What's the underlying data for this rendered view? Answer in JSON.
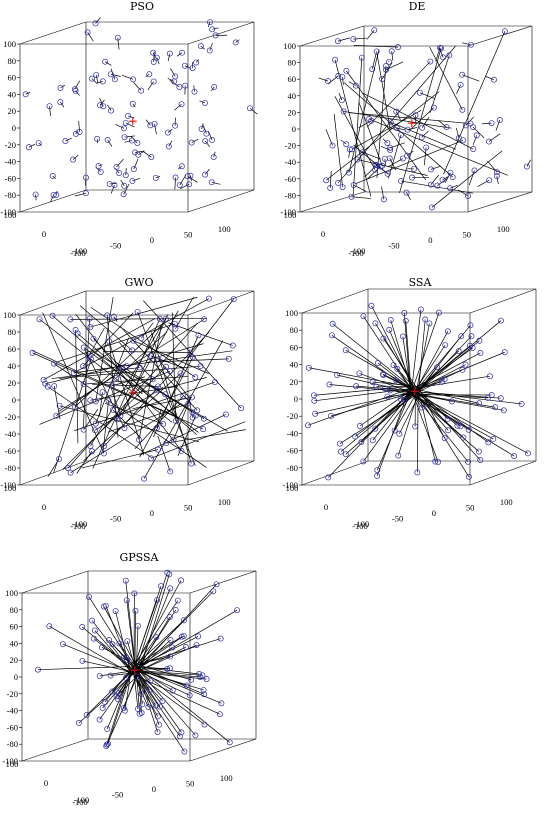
{
  "chart_data": [
    {
      "type": "scatter",
      "title": "PSO",
      "zlim": [
        -100,
        100
      ],
      "xlim": [
        -100,
        100
      ],
      "ylim": [
        -100,
        100
      ],
      "z_ticks": [
        "100",
        "80",
        "60",
        "40",
        "20",
        "0",
        "-20",
        "-40",
        "-60",
        "-80",
        "-100"
      ],
      "x_ticks": [
        "-100",
        "-50",
        "0",
        "50",
        "100"
      ],
      "y_ticks": [
        "100",
        "0",
        "-100"
      ],
      "best_marker": "+",
      "trajectory_pattern": "short-random",
      "particle_count": 100,
      "colors": {
        "particle": "#2a2aa8",
        "trajectory": "#000000",
        "best": "#e01010"
      }
    },
    {
      "type": "scatter",
      "title": "DE",
      "zlim": [
        -100,
        100
      ],
      "xlim": [
        -100,
        100
      ],
      "ylim": [
        -100,
        100
      ],
      "z_ticks": [
        "100",
        "80",
        "60",
        "40",
        "20",
        "0",
        "-20",
        "-40",
        "-60",
        "-80",
        "-100"
      ],
      "x_ticks": [
        "-100",
        "-50",
        "0",
        "50",
        "100"
      ],
      "y_ticks": [
        "100",
        "0",
        "-100"
      ],
      "best_marker": "+",
      "trajectory_pattern": "mixed-long",
      "particle_count": 100,
      "colors": {
        "particle": "#2a2aa8",
        "trajectory": "#000000",
        "best": "#e01010"
      }
    },
    {
      "type": "scatter",
      "title": "GWO",
      "zlim": [
        -100,
        100
      ],
      "xlim": [
        -100,
        100
      ],
      "ylim": [
        -100,
        100
      ],
      "z_ticks": [
        "100",
        "80",
        "60",
        "40",
        "20",
        "0",
        "-20",
        "-40",
        "-60",
        "-80",
        "-100"
      ],
      "x_ticks": [
        "-100",
        "-50",
        "0",
        "50",
        "100"
      ],
      "y_ticks": [
        "100",
        "0",
        "-100"
      ],
      "best_marker": "+",
      "trajectory_pattern": "long-random",
      "particle_count": 100,
      "colors": {
        "particle": "#2a2aa8",
        "trajectory": "#000000",
        "best": "#e01010"
      }
    },
    {
      "type": "scatter",
      "title": "SSA",
      "zlim": [
        -100,
        100
      ],
      "xlim": [
        -100,
        100
      ],
      "ylim": [
        -100,
        100
      ],
      "z_ticks": [
        "100",
        "80",
        "60",
        "40",
        "20",
        "0",
        "-20",
        "-40",
        "-60",
        "-80",
        "-100"
      ],
      "x_ticks": [
        "-100",
        "-50",
        "0",
        "50",
        "100"
      ],
      "y_ticks": [
        "100",
        "0",
        "-100"
      ],
      "best_marker": "+",
      "trajectory_pattern": "converge-to-center",
      "particle_count": 100,
      "colors": {
        "particle": "#2a2aa8",
        "trajectory": "#000000",
        "best": "#e01010"
      }
    },
    {
      "type": "scatter",
      "title": "GPSSA",
      "zlim": [
        -100,
        100
      ],
      "xlim": [
        -100,
        100
      ],
      "ylim": [
        -100,
        100
      ],
      "z_ticks": [
        "100",
        "80",
        "60",
        "40",
        "20",
        "0",
        "-20",
        "-40",
        "-60",
        "-80",
        "-100"
      ],
      "x_ticks": [
        "-100",
        "-50",
        "0",
        "50",
        "100"
      ],
      "y_ticks": [
        "100",
        "0",
        "-100"
      ],
      "best_marker": "+",
      "trajectory_pattern": "converge-to-center",
      "particle_count": 100,
      "colors": {
        "particle": "#2a2aa8",
        "trajectory": "#000000",
        "best": "#e01010"
      }
    }
  ]
}
